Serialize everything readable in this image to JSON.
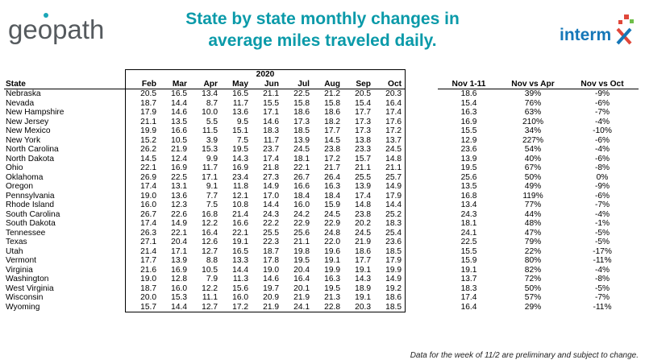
{
  "logo_left": {
    "text_before": "ge",
    "text_o": "o",
    "text_after": "path"
  },
  "title": {
    "line1": "State by state monthly changes in",
    "line2": "average miles traveled daily."
  },
  "logo_right": {
    "text": "interm",
    "mark_text": "X"
  },
  "colors": {
    "title": "#0a9aa9",
    "intermx_blue": "#1577b8",
    "intermx_red": "#e0473a",
    "intermx_green": "#6fbf4a"
  },
  "table": {
    "year_label": "2020",
    "headers": [
      "State",
      "Feb",
      "Mar",
      "Apr",
      "May",
      "Jun",
      "Jul",
      "Aug",
      "Sep",
      "Oct",
      "Nov 1-11",
      "Nov vs Apr",
      "Nov vs Oct"
    ],
    "rows": [
      [
        "Nebraska",
        "20.5",
        "16.5",
        "13.4",
        "16.5",
        "21.1",
        "22.5",
        "21.2",
        "20.5",
        "20.3",
        "18.6",
        "39%",
        "-9%"
      ],
      [
        "Nevada",
        "18.7",
        "14.4",
        "8.7",
        "11.7",
        "15.5",
        "15.8",
        "15.8",
        "15.4",
        "16.4",
        "15.4",
        "76%",
        "-6%"
      ],
      [
        "New Hampshire",
        "17.9",
        "14.6",
        "10.0",
        "13.6",
        "17.1",
        "18.6",
        "18.6",
        "17.7",
        "17.4",
        "16.3",
        "63%",
        "-7%"
      ],
      [
        "New Jersey",
        "21.1",
        "13.5",
        "5.5",
        "9.5",
        "14.6",
        "17.3",
        "18.2",
        "17.3",
        "17.6",
        "16.9",
        "210%",
        "-4%"
      ],
      [
        "New Mexico",
        "19.9",
        "16.6",
        "11.5",
        "15.1",
        "18.3",
        "18.5",
        "17.7",
        "17.3",
        "17.2",
        "15.5",
        "34%",
        "-10%"
      ],
      [
        "New York",
        "15.2",
        "10.5",
        "3.9",
        "7.5",
        "11.7",
        "13.9",
        "14.5",
        "13.8",
        "13.7",
        "12.9",
        "227%",
        "-6%"
      ],
      [
        "North Carolina",
        "26.2",
        "21.9",
        "15.3",
        "19.5",
        "23.7",
        "24.5",
        "23.8",
        "23.3",
        "24.5",
        "23.6",
        "54%",
        "-4%"
      ],
      [
        "North Dakota",
        "14.5",
        "12.4",
        "9.9",
        "14.3",
        "17.4",
        "18.1",
        "17.2",
        "15.7",
        "14.8",
        "13.9",
        "40%",
        "-6%"
      ],
      [
        "Ohio",
        "22.1",
        "16.9",
        "11.7",
        "16.9",
        "21.8",
        "22.1",
        "21.7",
        "21.1",
        "21.1",
        "19.5",
        "67%",
        "-8%"
      ],
      [
        "Oklahoma",
        "26.9",
        "22.5",
        "17.1",
        "23.4",
        "27.3",
        "26.7",
        "26.4",
        "25.5",
        "25.7",
        "25.6",
        "50%",
        "0%"
      ],
      [
        "Oregon",
        "17.4",
        "13.1",
        "9.1",
        "11.8",
        "14.9",
        "16.6",
        "16.3",
        "13.9",
        "14.9",
        "13.5",
        "49%",
        "-9%"
      ],
      [
        "Pennsylvania",
        "19.0",
        "13.6",
        "7.7",
        "12.1",
        "17.0",
        "18.4",
        "18.4",
        "17.4",
        "17.9",
        "16.8",
        "119%",
        "-6%"
      ],
      [
        "Rhode Island",
        "16.0",
        "12.3",
        "7.5",
        "10.8",
        "14.4",
        "16.0",
        "15.9",
        "14.8",
        "14.4",
        "13.4",
        "77%",
        "-7%"
      ],
      [
        "South Carolina",
        "26.7",
        "22.6",
        "16.8",
        "21.4",
        "24.3",
        "24.2",
        "24.5",
        "23.8",
        "25.2",
        "24.3",
        "44%",
        "-4%"
      ],
      [
        "South Dakota",
        "17.4",
        "14.9",
        "12.2",
        "16.6",
        "22.2",
        "22.9",
        "22.9",
        "20.2",
        "18.3",
        "18.1",
        "48%",
        "-1%"
      ],
      [
        "Tennessee",
        "26.3",
        "22.1",
        "16.4",
        "22.1",
        "25.5",
        "25.6",
        "24.8",
        "24.5",
        "25.4",
        "24.1",
        "47%",
        "-5%"
      ],
      [
        "Texas",
        "27.1",
        "20.4",
        "12.6",
        "19.1",
        "22.3",
        "21.1",
        "22.0",
        "21.9",
        "23.6",
        "22.5",
        "79%",
        "-5%"
      ],
      [
        "Utah",
        "21.4",
        "17.1",
        "12.7",
        "16.5",
        "18.7",
        "19.8",
        "19.6",
        "18.6",
        "18.5",
        "15.5",
        "22%",
        "-17%"
      ],
      [
        "Vermont",
        "17.7",
        "13.9",
        "8.8",
        "13.3",
        "17.8",
        "19.5",
        "19.1",
        "17.7",
        "17.9",
        "15.9",
        "80%",
        "-11%"
      ],
      [
        "Virginia",
        "21.6",
        "16.9",
        "10.5",
        "14.4",
        "19.0",
        "20.4",
        "19.9",
        "19.1",
        "19.9",
        "19.1",
        "82%",
        "-4%"
      ],
      [
        "Washington",
        "19.0",
        "12.8",
        "7.9",
        "11.3",
        "14.6",
        "16.4",
        "16.3",
        "14.3",
        "14.9",
        "13.7",
        "72%",
        "-8%"
      ],
      [
        "West Virginia",
        "18.7",
        "16.0",
        "12.2",
        "15.6",
        "19.7",
        "20.1",
        "19.5",
        "18.9",
        "19.2",
        "18.3",
        "50%",
        "-5%"
      ],
      [
        "Wisconsin",
        "20.0",
        "15.3",
        "11.1",
        "16.0",
        "20.9",
        "21.9",
        "21.3",
        "19.1",
        "18.6",
        "17.4",
        "57%",
        "-7%"
      ],
      [
        "Wyoming",
        "15.7",
        "14.4",
        "12.7",
        "17.2",
        "21.9",
        "24.1",
        "22.8",
        "20.3",
        "18.5",
        "16.4",
        "29%",
        "-11%"
      ]
    ]
  },
  "footnote": "Data for the week of 11/2 are preliminary  and subject to change."
}
